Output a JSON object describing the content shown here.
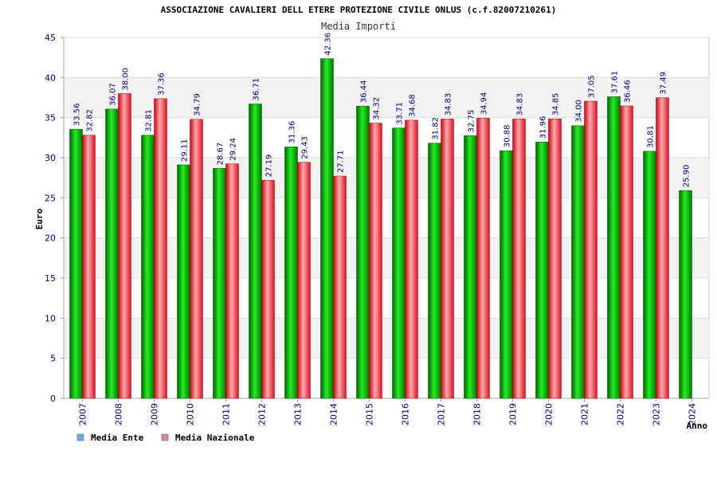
{
  "chart_data": {
    "type": "bar",
    "title": "ASSOCIAZIONE CAVALIERI DELL ETERE PROTEZIONE CIVILE ONLUS (c.f.82007210261)",
    "subtitle": "Media Importi",
    "xlabel": "Anno",
    "ylabel": "Euro",
    "ylim": [
      0,
      45
    ],
    "yticks": [
      0,
      5,
      10,
      15,
      20,
      25,
      30,
      35,
      40,
      45
    ],
    "grid": true,
    "legend_position": "bottom-left",
    "categories": [
      "2007",
      "2008",
      "2009",
      "2010",
      "2011",
      "2012",
      "2013",
      "2014",
      "2015",
      "2016",
      "2017",
      "2018",
      "2019",
      "2020",
      "2021",
      "2022",
      "2023",
      "2024"
    ],
    "series": [
      {
        "name": "Media Ente",
        "color": "#00aa00",
        "legend_color": "#66aaee",
        "values": [
          33.56,
          36.07,
          32.81,
          29.11,
          28.67,
          36.71,
          31.36,
          42.36,
          36.44,
          33.71,
          31.82,
          32.75,
          30.88,
          31.96,
          34.0,
          37.61,
          30.81,
          25.9
        ],
        "labels": [
          "33.56",
          "36.07",
          "32.81",
          "29.11",
          "28.67",
          "36.71",
          "31.36",
          "42.36",
          "36.44",
          "33.71",
          "31.82",
          "32.75",
          "30.88",
          "31.96",
          "34.00",
          "37.61",
          "30.81",
          "25.90"
        ]
      },
      {
        "name": "Media Nazionale",
        "color": "#ee2233",
        "legend_color": "#dd88aa",
        "values": [
          32.82,
          38.0,
          37.36,
          34.79,
          29.24,
          27.19,
          29.43,
          27.71,
          34.32,
          34.68,
          34.83,
          34.94,
          34.83,
          34.85,
          37.05,
          36.46,
          37.49,
          null
        ],
        "labels": [
          "32.82",
          "38.00",
          "37.36",
          "34.79",
          "29.24",
          "27.19",
          "29.43",
          "27.71",
          "34.32",
          "34.68",
          "34.83",
          "34.94",
          "34.83",
          "34.85",
          "37.05",
          "36.46",
          "37.49",
          null
        ]
      }
    ]
  }
}
